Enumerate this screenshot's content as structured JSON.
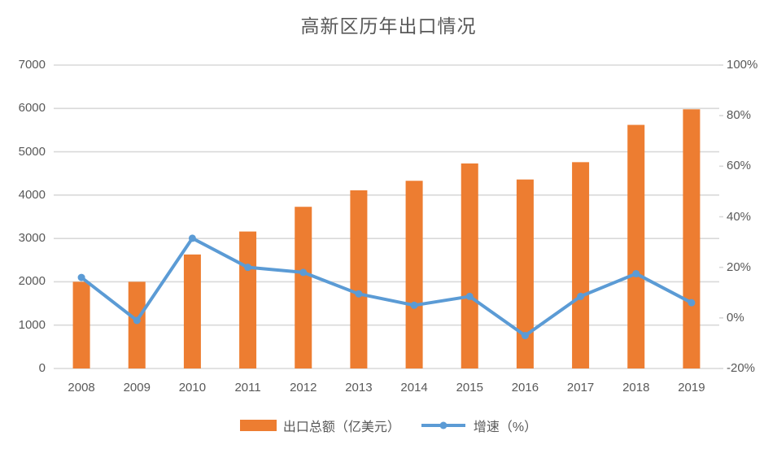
{
  "title": "高新区历年出口情况",
  "chart_data": {
    "type": "combo: bar + line",
    "title": "高新区历年出口情况",
    "categories": [
      "2008",
      "2009",
      "2010",
      "2011",
      "2012",
      "2013",
      "2014",
      "2015",
      "2016",
      "2017",
      "2018",
      "2019"
    ],
    "series": [
      {
        "name": "出口总额（亿美元）",
        "type": "bar",
        "axis": "left",
        "color": "#ED7D31",
        "values": [
          2000,
          2000,
          2630,
          3160,
          3730,
          4110,
          4330,
          4730,
          4360,
          4760,
          5620,
          5980
        ]
      },
      {
        "name": "增速（%）",
        "type": "line",
        "axis": "right",
        "color": "#5B9BD5",
        "values": [
          16,
          -1,
          31.5,
          20,
          18,
          9.5,
          5,
          8.5,
          -7,
          8.5,
          17.5,
          6
        ]
      }
    ],
    "left_axis": {
      "min": 0,
      "max": 7000,
      "step": 1000,
      "labels": [
        "7000",
        "6000",
        "5000",
        "4000",
        "3000",
        "2000",
        "1000",
        "0"
      ]
    },
    "right_axis": {
      "min": -20,
      "max": 100,
      "step": 20,
      "labels": [
        "100%",
        "80%",
        "60%",
        "40%",
        "20%",
        "0%",
        "-20%"
      ]
    },
    "grid": true,
    "legend_position": "bottom",
    "colors": {
      "grid": "#D9D9D9",
      "text": "#595959",
      "title": "#595959",
      "background": "#FFFFFF"
    }
  }
}
